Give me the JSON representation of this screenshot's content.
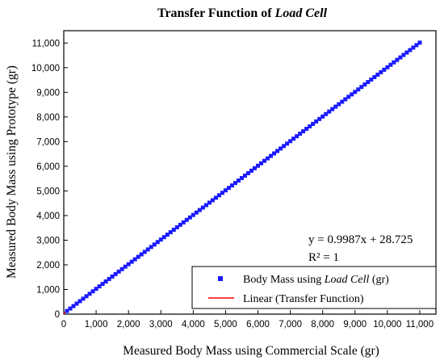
{
  "chart_data": {
    "type": "scatter",
    "title": "Transfer Function of Load Cell",
    "title_parts": {
      "prefix": "Transfer Function of ",
      "italic": "Load Cell"
    },
    "xlabel": "Measured Body Mass using Commercial Scale (gr)",
    "ylabel": "Measured Body Mass using Prototype (gr)",
    "xlim": [
      0,
      11500
    ],
    "ylim": [
      0,
      11500
    ],
    "xticks": [
      0,
      1000,
      2000,
      3000,
      4000,
      5000,
      6000,
      7000,
      8000,
      9000,
      10000,
      11000
    ],
    "xtick_labels": [
      "0",
      "1,000",
      "2,000",
      "3,000",
      "4,000",
      "5,000",
      "6,000",
      "7,000",
      "8,000",
      "9,000",
      "10,000",
      "11,000"
    ],
    "yticks": [
      0,
      1000,
      2000,
      3000,
      4000,
      5000,
      6000,
      7000,
      8000,
      9000,
      10000,
      11000
    ],
    "ytick_labels": [
      "0",
      "1,000",
      "2,000",
      "3,000",
      "4,000",
      "5,000",
      "6,000",
      "7,000",
      "8,000",
      "9,000",
      "10,000",
      "11,000"
    ],
    "grid": false,
    "legend_position": "bottom-right",
    "series": [
      {
        "name": "Body Mass using Load Cell (gr)",
        "name_parts": {
          "prefix": "Body Mass using ",
          "italic": "Load Cell",
          "suffix": " (gr)"
        },
        "kind": "scatter",
        "marker": "square",
        "color": "#1a1aff",
        "x_start": 100,
        "x_end": 11000,
        "x_step": 100
      },
      {
        "name": "Linear (Transfer Function)",
        "kind": "line",
        "color": "#ff0000",
        "slope": 0.9987,
        "intercept": 28.725,
        "x_range": [
          0,
          11000
        ]
      }
    ],
    "annotations": {
      "equation": "y = 0.9987x + 28.725",
      "r_squared": "R² = 1"
    }
  }
}
